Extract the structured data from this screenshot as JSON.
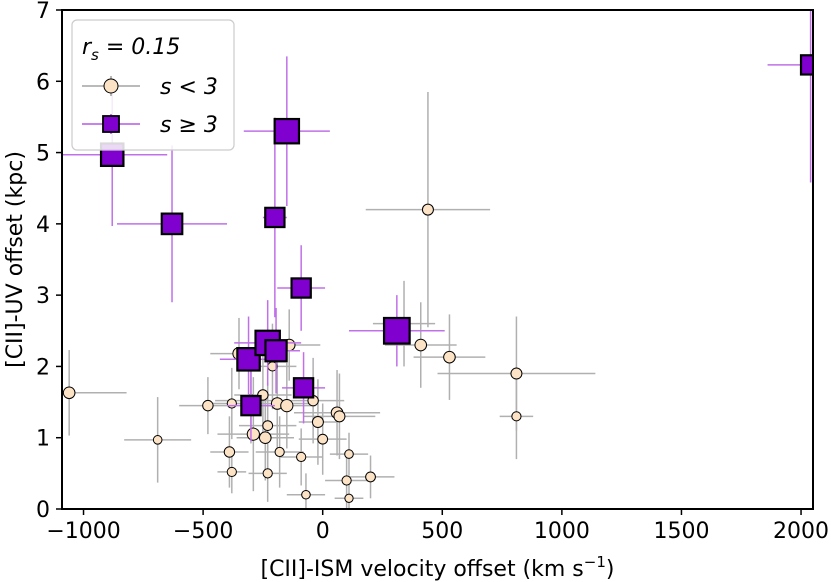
{
  "chart_data": {
    "type": "scatter",
    "xlabel": "[CII]-ISM velocity offset (km s",
    "xlabel_sup": "−1",
    "xlabel_end": ")",
    "ylabel": "[CII]-UV offset (kpc)",
    "xlim": [
      -1090,
      2050
    ],
    "ylim": [
      0,
      7
    ],
    "xticks": [
      -1000,
      -500,
      0,
      500,
      1000,
      1500,
      2000
    ],
    "xtick_labels": [
      "−1000",
      "−500",
      "0",
      "500",
      "1000",
      "1500",
      "2000"
    ],
    "yticks": [
      0,
      1,
      2,
      3,
      4,
      5,
      6,
      7
    ],
    "ytick_labels": [
      "0",
      "1",
      "2",
      "3",
      "4",
      "5",
      "6",
      "7"
    ],
    "grid": false,
    "legend": {
      "placement": "top-left",
      "title_var": "r",
      "title_sub": "s",
      "title_rest": " = 0.15",
      "entries": [
        "s < 3",
        "s ≥ 3"
      ]
    },
    "colors": {
      "low_fill": "#fde3c6",
      "low_err": "#b0b0b0",
      "high_fill": "#8000d0",
      "high_err": "#c070e8"
    },
    "series": [
      {
        "name": "s < 3",
        "marker": "circle",
        "points": [
          {
            "x": -1060,
            "y": 1.63,
            "xerr": 240,
            "yerr": 0.6,
            "s": 2.0
          },
          {
            "x": -690,
            "y": 0.97,
            "xerr": 140,
            "yerr": 0.6,
            "s": 1.0
          },
          {
            "x": -480,
            "y": 1.45,
            "xerr": 120,
            "yerr": 0.4,
            "s": 1.6
          },
          {
            "x": -380,
            "y": 1.48,
            "xerr": 100,
            "yerr": 0.5,
            "s": 1.2
          },
          {
            "x": -390,
            "y": 0.8,
            "xerr": 80,
            "yerr": 0.5,
            "s": 1.6
          },
          {
            "x": -380,
            "y": 0.52,
            "xerr": 60,
            "yerr": 0.3,
            "s": 1.2
          },
          {
            "x": -350,
            "y": 2.18,
            "xerr": 120,
            "yerr": 0.5,
            "s": 2.2
          },
          {
            "x": -300,
            "y": 1.52,
            "xerr": 150,
            "yerr": 0.6,
            "s": 2.0
          },
          {
            "x": -290,
            "y": 1.05,
            "xerr": 150,
            "yerr": 0.8,
            "s": 2.2
          },
          {
            "x": -250,
            "y": 1.6,
            "xerr": 120,
            "yerr": 0.6,
            "s": 1.6
          },
          {
            "x": -240,
            "y": 1.0,
            "xerr": 120,
            "yerr": 0.6,
            "s": 2.0
          },
          {
            "x": -230,
            "y": 1.17,
            "xerr": 120,
            "yerr": 0.6,
            "s": 1.4
          },
          {
            "x": -230,
            "y": 0.5,
            "xerr": 80,
            "yerr": 0.4,
            "s": 1.2
          },
          {
            "x": -210,
            "y": 2.0,
            "xerr": 100,
            "yerr": 0.6,
            "s": 1.2
          },
          {
            "x": -190,
            "y": 1.48,
            "xerr": 150,
            "yerr": 0.7,
            "s": 2.0
          },
          {
            "x": -180,
            "y": 0.8,
            "xerr": 100,
            "yerr": 0.5,
            "s": 1.2
          },
          {
            "x": -150,
            "y": 1.45,
            "xerr": 120,
            "yerr": 0.6,
            "s": 2.2
          },
          {
            "x": -140,
            "y": 2.3,
            "xerr": 130,
            "yerr": 0.5,
            "s": 2.0
          },
          {
            "x": -90,
            "y": 0.73,
            "xerr": 90,
            "yerr": 0.4,
            "s": 1.2
          },
          {
            "x": -70,
            "y": 0.2,
            "xerr": 80,
            "yerr": 0.3,
            "s": 1.0
          },
          {
            "x": -40,
            "y": 1.52,
            "xerr": 130,
            "yerr": 0.6,
            "s": 1.6
          },
          {
            "x": -20,
            "y": 1.22,
            "xerr": 80,
            "yerr": 0.6,
            "s": 1.8
          },
          {
            "x": 0,
            "y": 0.98,
            "xerr": 100,
            "yerr": 0.5,
            "s": 1.4
          },
          {
            "x": 60,
            "y": 1.35,
            "xerr": 180,
            "yerr": 0.6,
            "s": 2.0
          },
          {
            "x": 70,
            "y": 1.3,
            "xerr": 150,
            "yerr": 0.6,
            "s": 1.8
          },
          {
            "x": 100,
            "y": 0.4,
            "xerr": 90,
            "yerr": 0.4,
            "s": 1.2
          },
          {
            "x": 110,
            "y": 0.15,
            "xerr": 60,
            "yerr": 0.3,
            "s": 0.9
          },
          {
            "x": 110,
            "y": 0.77,
            "xerr": 80,
            "yerr": 0.3,
            "s": 1.0
          },
          {
            "x": 200,
            "y": 0.45,
            "xerr": 100,
            "yerr": 0.3,
            "s": 1.4
          },
          {
            "x": 340,
            "y": 2.6,
            "xerr": 130,
            "yerr": 0.6,
            "s": 1.6
          },
          {
            "x": 410,
            "y": 2.3,
            "xerr": 150,
            "yerr": 0.6,
            "s": 2.0
          },
          {
            "x": 440,
            "y": 4.2,
            "xerr": 260,
            "yerr": 1.65,
            "s": 1.8
          },
          {
            "x": 530,
            "y": 2.13,
            "xerr": 150,
            "yerr": 0.6,
            "s": 2.0
          },
          {
            "x": 810,
            "y": 1.9,
            "xerr": 330,
            "yerr": 0.8,
            "s": 1.8
          },
          {
            "x": 810,
            "y": 1.3,
            "xerr": 70,
            "yerr": 0.6,
            "s": 1.2
          }
        ]
      },
      {
        "name": "s ≥ 3",
        "marker": "square",
        "points": [
          {
            "x": -880,
            "y": 4.97,
            "xerr": 230,
            "yerr": 1.0,
            "s": 3.5
          },
          {
            "x": -630,
            "y": 4.0,
            "xerr": 230,
            "yerr": 1.1,
            "s": 3.2
          },
          {
            "x": -310,
            "y": 2.1,
            "xerr": 120,
            "yerr": 0.6,
            "s": 3.5
          },
          {
            "x": -300,
            "y": 1.45,
            "xerr": 100,
            "yerr": 0.5,
            "s": 3.0
          },
          {
            "x": -230,
            "y": 2.33,
            "xerr": 140,
            "yerr": 0.6,
            "s": 3.8
          },
          {
            "x": -195,
            "y": 2.22,
            "xerr": 100,
            "yerr": 0.6,
            "s": 3.3
          },
          {
            "x": -200,
            "y": 4.09,
            "xerr": 50,
            "yerr": 1.4,
            "s": 3.0
          },
          {
            "x": -150,
            "y": 5.3,
            "xerr": 180,
            "yerr": 1.05,
            "s": 3.8
          },
          {
            "x": -90,
            "y": 3.1,
            "xerr": 100,
            "yerr": 0.6,
            "s": 3.0
          },
          {
            "x": -80,
            "y": 1.7,
            "xerr": 90,
            "yerr": 0.5,
            "s": 3.0
          },
          {
            "x": 310,
            "y": 2.5,
            "xerr": 200,
            "yerr": 0.5,
            "s": 4.0
          },
          {
            "x": 2040,
            "y": 6.23,
            "xerr": 180,
            "yerr": 1.65,
            "s": 3.0
          }
        ]
      }
    ]
  }
}
